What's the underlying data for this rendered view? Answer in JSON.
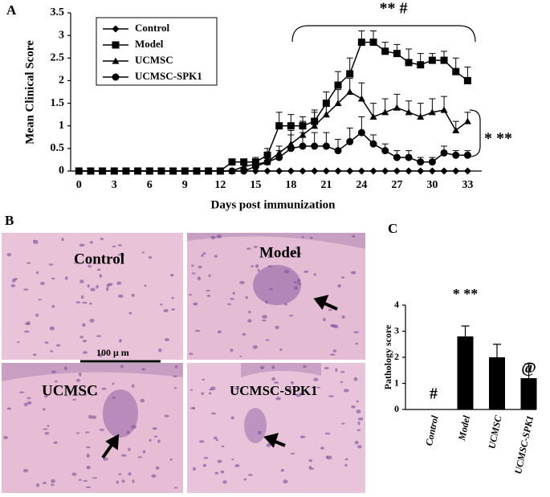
{
  "panel_labels": [
    "A",
    "B",
    "C"
  ],
  "micrographs": {
    "labels": [
      "Control",
      "Model",
      "UCMSC",
      "UCMSC-SPK1"
    ],
    "scale_bar": "100 μ m"
  },
  "chart_data": [
    {
      "type": "line",
      "xlabel": "Days post immunization",
      "ylabel": "Mean Clinical Score",
      "x": [
        0,
        1,
        2,
        3,
        4,
        5,
        6,
        7,
        8,
        9,
        10,
        11,
        12,
        13,
        14,
        15,
        16,
        17,
        18,
        19,
        20,
        21,
        22,
        23,
        24,
        25,
        26,
        27,
        28,
        29,
        30,
        31,
        32,
        33
      ],
      "series": [
        {
          "name": "Control",
          "color": "#000000",
          "marker": "diamond",
          "values": [
            0,
            0,
            0,
            0,
            0,
            0,
            0,
            0,
            0,
            0,
            0,
            0,
            0,
            0,
            0,
            0,
            0,
            0,
            0,
            0,
            0,
            0,
            0,
            0,
            0,
            0,
            0,
            0,
            0,
            0,
            0,
            0,
            0,
            0
          ],
          "errors": [
            null,
            null,
            null,
            null,
            null,
            null,
            null,
            null,
            null,
            null,
            null,
            null,
            null,
            null,
            null,
            null,
            null,
            null,
            null,
            null,
            null,
            null,
            null,
            null,
            null,
            null,
            null,
            null,
            null,
            null,
            null,
            null,
            null,
            null
          ]
        },
        {
          "name": "Model",
          "color": "#000000",
          "marker": "square",
          "values": [
            0,
            0,
            0,
            0,
            0,
            0,
            0,
            0,
            0,
            0,
            0,
            0,
            0,
            0.2,
            0.2,
            0.2,
            0.35,
            1.0,
            1.0,
            1.0,
            1.1,
            1.5,
            1.9,
            2.15,
            2.85,
            2.85,
            2.65,
            2.6,
            2.4,
            2.35,
            2.45,
            2.45,
            2.2,
            2.0
          ],
          "errors": [
            null,
            null,
            null,
            null,
            null,
            null,
            null,
            null,
            null,
            null,
            null,
            null,
            null,
            0.05,
            0.05,
            0.1,
            0.15,
            0.3,
            0.25,
            0.2,
            0.25,
            0.25,
            0.3,
            0.35,
            0.25,
            0.25,
            0.2,
            0.2,
            0.3,
            0.25,
            0.15,
            0.2,
            0.3,
            0.3
          ]
        },
        {
          "name": "UCMSC",
          "color": "#000000",
          "marker": "triangle",
          "values": [
            0,
            0,
            0,
            0,
            0,
            0,
            0,
            0,
            0,
            0,
            0,
            0,
            0,
            0,
            0.1,
            0.15,
            0.2,
            0.4,
            0.6,
            0.8,
            1.0,
            1.25,
            1.5,
            1.75,
            1.6,
            1.2,
            1.3,
            1.4,
            1.3,
            1.2,
            1.3,
            1.35,
            0.9,
            1.1
          ],
          "errors": [
            null,
            null,
            null,
            null,
            null,
            null,
            null,
            null,
            null,
            null,
            null,
            null,
            null,
            null,
            0.05,
            0.05,
            0.1,
            0.15,
            0.3,
            0.3,
            0.3,
            0.25,
            0.3,
            0.3,
            0.35,
            0.3,
            0.3,
            0.3,
            0.25,
            0.3,
            0.3,
            0.3,
            0.2,
            0.2
          ]
        },
        {
          "name": "UCMSC-SPK1",
          "color": "#000000",
          "marker": "circle",
          "values": [
            0,
            0,
            0,
            0,
            0,
            0,
            0,
            0,
            0,
            0,
            0,
            0,
            0,
            0,
            0,
            0.1,
            0.2,
            0.3,
            0.5,
            0.55,
            0.55,
            0.55,
            0.45,
            0.65,
            0.85,
            0.6,
            0.45,
            0.3,
            0.3,
            0.2,
            0.2,
            0.4,
            0.35,
            0.35
          ],
          "errors": [
            null,
            null,
            null,
            null,
            null,
            null,
            null,
            null,
            null,
            null,
            null,
            null,
            null,
            null,
            null,
            0.05,
            0.1,
            0.15,
            0.3,
            0.3,
            0.3,
            0.3,
            0.25,
            0.3,
            0.35,
            0.2,
            0.15,
            0.15,
            0.15,
            0.1,
            0.1,
            0.15,
            0.1,
            0.1
          ]
        }
      ],
      "xlim": [
        -0.7,
        34.2
      ],
      "xticks": [
        0,
        3,
        6,
        9,
        12,
        15,
        18,
        21,
        24,
        27,
        30,
        33
      ],
      "ylim": [
        0,
        3.5
      ],
      "yticks": [
        0,
        0.5,
        1,
        1.5,
        2,
        2.5,
        3,
        3.5
      ],
      "legend": "upper left",
      "annotations": [
        "** #",
        "* **"
      ]
    },
    {
      "type": "bar",
      "ylabel": "Pathology score",
      "categories": [
        "Control",
        "Model",
        "UCMSC",
        "UCMSC-SPK1"
      ],
      "values": [
        0,
        2.8,
        2.0,
        1.2
      ],
      "errors": [
        0,
        0.4,
        0.5,
        0.55
      ],
      "color": "#000000",
      "ylim": [
        0,
        4
      ],
      "yticks": [
        0,
        1,
        2,
        3,
        4
      ],
      "annotations": [
        "#",
        "* **",
        "@"
      ]
    }
  ]
}
